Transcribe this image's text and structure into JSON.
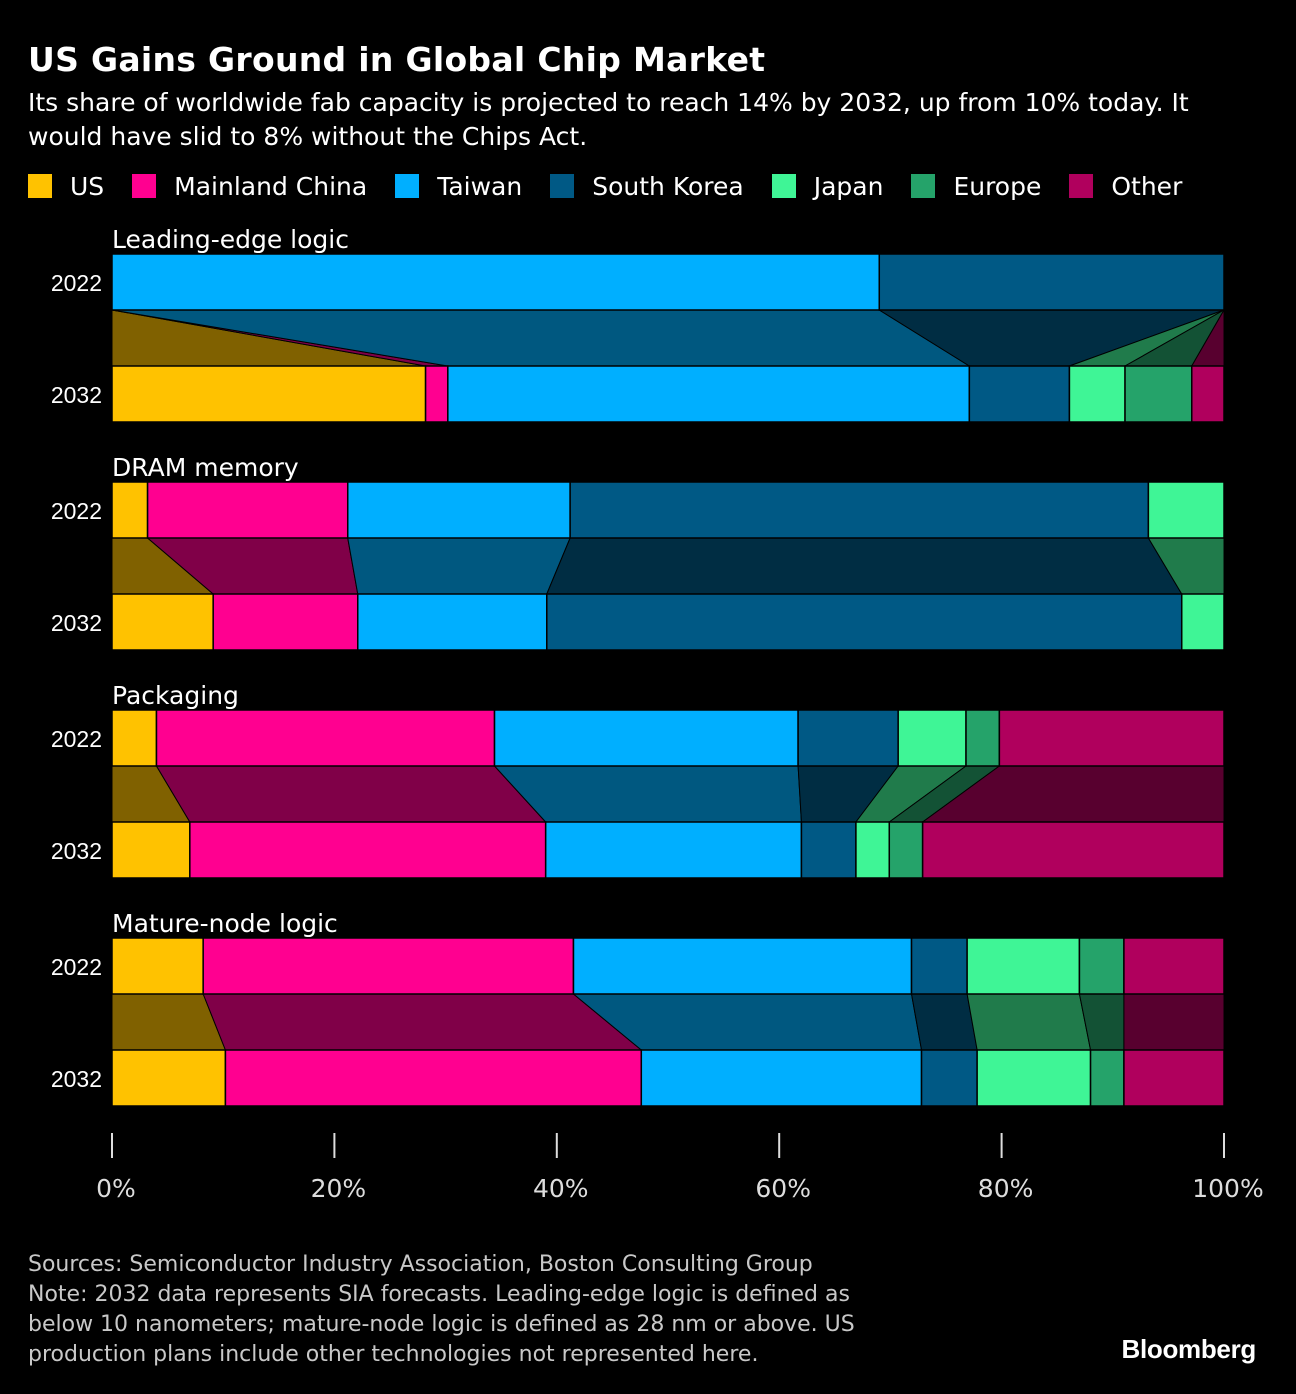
{
  "header": {
    "title": "US Gains Ground in Global Chip Market",
    "subtitle": "Its share of worldwide fab capacity is projected to reach 14% by 2032, up from 10% today. It would have slid to 8% without the Chips Act."
  },
  "legend": [
    {
      "label": "US",
      "color": "#FFC200"
    },
    {
      "label": "Mainland China",
      "color": "#FF0090"
    },
    {
      "label": "Taiwan",
      "color": "#00AFFF"
    },
    {
      "label": "South Korea",
      "color": "#005985"
    },
    {
      "label": "Japan",
      "color": "#3FF596"
    },
    {
      "label": "Europe",
      "color": "#25A36A"
    },
    {
      "label": "Other",
      "color": "#B0005D"
    }
  ],
  "chart_data": {
    "type": "bar",
    "orientation": "horizontal-stacked-100",
    "categories": [
      "US",
      "Mainland China",
      "Taiwan",
      "South Korea",
      "Japan",
      "Europe",
      "Other"
    ],
    "xaxis": {
      "range": [
        0,
        100
      ],
      "ticks": [
        "0%",
        "20%",
        "40%",
        "60%",
        "80%",
        "100%"
      ]
    },
    "panels": [
      {
        "title": "Leading-edge logic",
        "rows": [
          {
            "year": "2022",
            "values": [
              0,
              0,
              69,
              31,
              0,
              0,
              0
            ]
          },
          {
            "year": "2032",
            "values": [
              28.2,
              2.0,
              46.9,
              9.0,
              5.0,
              6.0,
              2.9
            ]
          }
        ]
      },
      {
        "title": "DRAM memory",
        "rows": [
          {
            "year": "2022",
            "values": [
              3.2,
              18.0,
              20.0,
              52.0,
              6.8,
              0,
              0
            ]
          },
          {
            "year": "2032",
            "values": [
              9.1,
              13.0,
              17.0,
              57.1,
              3.8,
              0,
              0
            ]
          }
        ]
      },
      {
        "title": "Packaging",
        "rows": [
          {
            "year": "2022",
            "values": [
              4.0,
              30.4,
              27.3,
              9.0,
              6.1,
              3.0,
              20.2
            ]
          },
          {
            "year": "2032",
            "values": [
              7.0,
              32.0,
              23.0,
              4.9,
              3.0,
              3.0,
              27.1
            ]
          }
        ]
      },
      {
        "title": "Mature-node logic",
        "rows": [
          {
            "year": "2022",
            "values": [
              8.2,
              33.3,
              30.4,
              5.0,
              10.1,
              4.0,
              9.0
            ]
          },
          {
            "year": "2032",
            "values": [
              10.2,
              37.4,
              25.2,
              5.0,
              10.2,
              3.0,
              9.0
            ]
          }
        ]
      }
    ]
  },
  "footer": {
    "sources": "Sources: Semiconductor Industry Association, Boston Consulting Group",
    "note_line1": "Note: 2032 data represents SIA forecasts. Leading-edge logic is defined as",
    "note_line2": "below 10 nanometers; mature-node logic is defined as 28 nm or above. US",
    "note_line3": "production plans include other technologies not represented here.",
    "brand": "Bloomberg"
  }
}
